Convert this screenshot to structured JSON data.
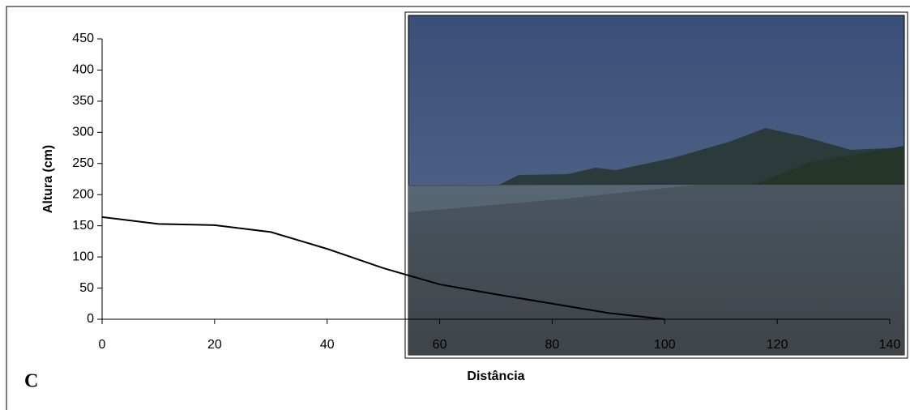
{
  "chart_data": {
    "type": "line",
    "xlabel": "Distância",
    "ylabel": "Altura (cm)",
    "annotation": "C",
    "x": [
      0,
      10,
      20,
      30,
      40,
      50,
      60,
      70,
      80,
      90,
      100
    ],
    "values": [
      164,
      153,
      151,
      140,
      113,
      82,
      56,
      40,
      25,
      10,
      0
    ],
    "color": "#000000",
    "xlim": [
      0,
      140
    ],
    "xticks": [
      0,
      20,
      40,
      60,
      80,
      100,
      120,
      140
    ],
    "ylim": [
      0,
      450
    ],
    "yticks": [
      0,
      50,
      100,
      150,
      200,
      250,
      300,
      350,
      400,
      450
    ],
    "grid": false
  }
}
